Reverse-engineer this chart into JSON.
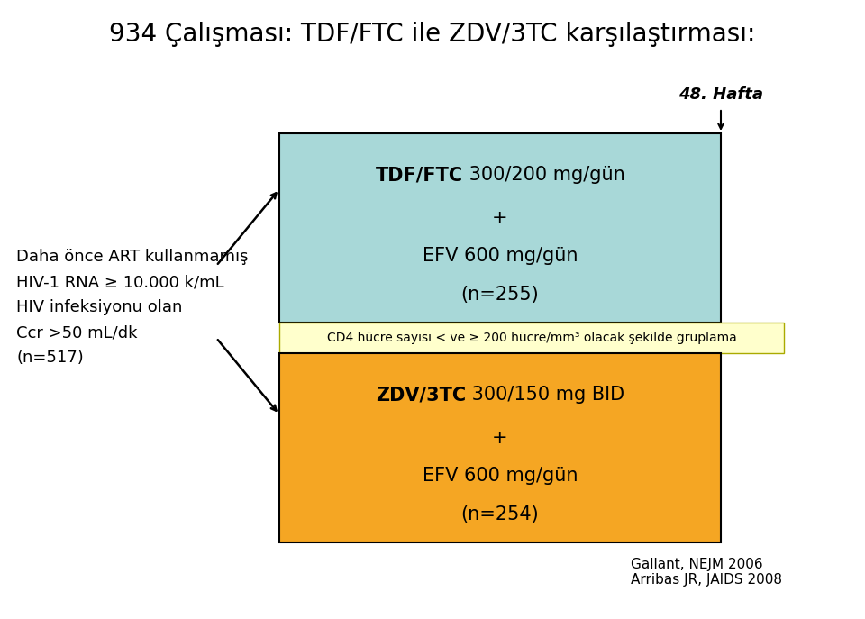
{
  "title": "934 Çalışması: TDF/FTC ile ZDV/3TC karşılaştırması:",
  "title_fontsize": 20,
  "left_text_lines": [
    "Daha önce ART kullanmamış",
    "HIV-1 RNA ≥ 10.000 k/mL",
    "HIV infeksiyonu olan",
    "Ccr >50 mL/dk",
    "(n=517)"
  ],
  "hafta_label": "48. Hafta",
  "box_tdf_color": "#a8d8d8",
  "box_zdv_color": "#f5a623",
  "box_cd4_color": "#ffffcc",
  "cd4_text": "CD4 hücre sayısı < ve ≥ 200 hücre/mm³ olacak şekilde gruplama",
  "citation": "Gallant, NEJM 2006\nArribas JR, JAIDS 2008",
  "bg_color": "#ffffff",
  "text_color": "#000000"
}
